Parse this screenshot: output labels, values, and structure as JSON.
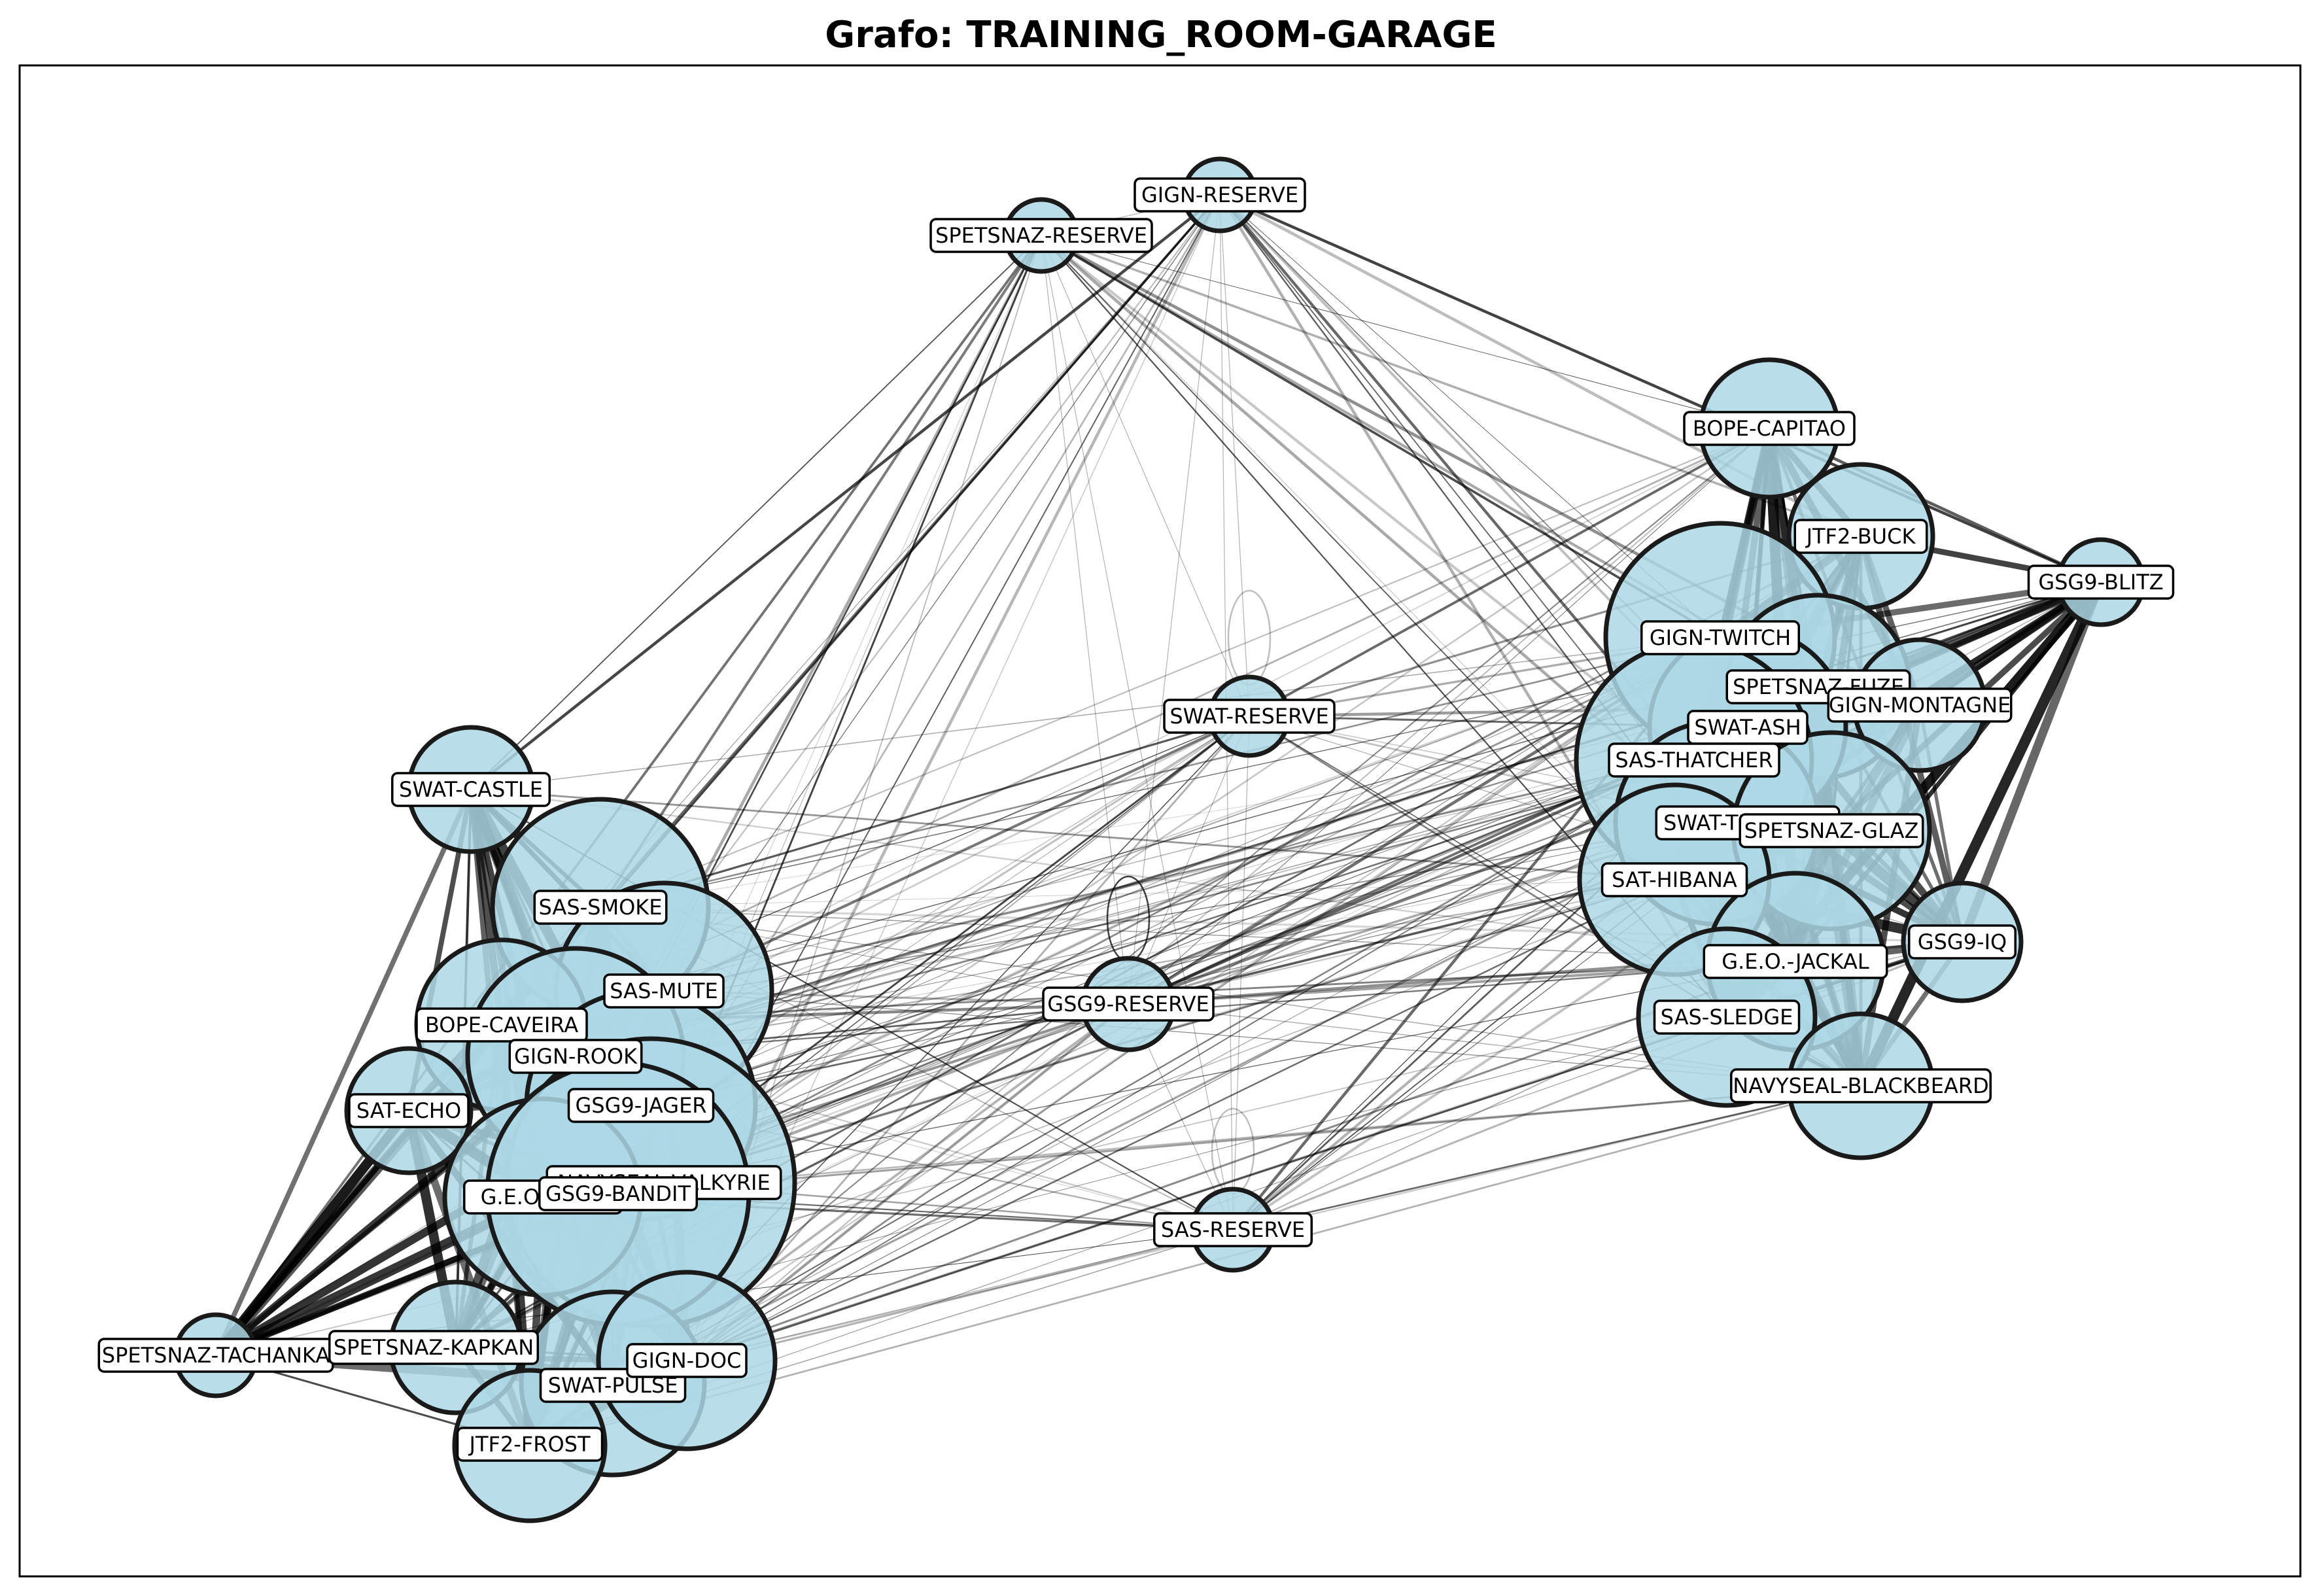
{
  "title": "Grafo: TRAINING_ROOM-GARAGE",
  "colors": {
    "node_fill": "#add8e6",
    "node_edge": "#1a1a1a",
    "edge": "#000000",
    "label_bg": "#ffffff"
  },
  "nodes": [
    {
      "id": "SPETSNAZ-RESERVE",
      "label": "SPETSNAZ-RESERVE"
    },
    {
      "id": "GIGN-RESERVE",
      "label": "GIGN-RESERVE"
    },
    {
      "id": "BOPE-CAPITAO",
      "label": "BOPE-CAPITAO"
    },
    {
      "id": "JTF2-BUCK",
      "label": "JTF2-BUCK"
    },
    {
      "id": "GSG9-BLITZ",
      "label": "GSG9-BLITZ"
    },
    {
      "id": "GIGN-TWITCH",
      "label": "GIGN-TWITCH"
    },
    {
      "id": "SPETSNAZ-FUZE",
      "label": "SPETSNAZ-FUZE"
    },
    {
      "id": "GIGN-MONTAGNE",
      "label": "GIGN-MONTAGNE"
    },
    {
      "id": "SWAT-ASH",
      "label": "SWAT-ASH"
    },
    {
      "id": "SAS-THATCHER",
      "label": "SAS-THATCHER"
    },
    {
      "id": "SWAT-THERMITE",
      "label": "SWAT-THERMITE"
    },
    {
      "id": "SPETSNAZ-GLAZ",
      "label": "SPETSNAZ-GLAZ"
    },
    {
      "id": "SAT-HIBANA",
      "label": "SAT-HIBANA"
    },
    {
      "id": "GSG9-IQ",
      "label": "GSG9-IQ"
    },
    {
      "id": "G.E.O.-JACKAL",
      "label": "G.E.O.-JACKAL"
    },
    {
      "id": "SAS-SLEDGE",
      "label": "SAS-SLEDGE"
    },
    {
      "id": "NAVYSEAL-BLACKBEARD",
      "label": "NAVYSEAL-BLACKBEARD"
    },
    {
      "id": "SWAT-RESERVE",
      "label": "SWAT-RESERVE"
    },
    {
      "id": "GSG9-RESERVE",
      "label": "GSG9-RESERVE"
    },
    {
      "id": "SAS-RESERVE",
      "label": "SAS-RESERVE"
    },
    {
      "id": "SWAT-CASTLE",
      "label": "SWAT-CASTLE"
    },
    {
      "id": "SAS-SMOKE",
      "label": "SAS-SMOKE"
    },
    {
      "id": "SAS-MUTE",
      "label": "SAS-MUTE"
    },
    {
      "id": "BOPE-CAVEIRA",
      "label": "BOPE-CAVEIRA"
    },
    {
      "id": "GIGN-ROOK",
      "label": "GIGN-ROOK"
    },
    {
      "id": "SAT-ECHO",
      "label": "SAT-ECHO"
    },
    {
      "id": "GSG9-JAGER",
      "label": "GSG9-JAGER"
    },
    {
      "id": "NAVYSEAL-VALKYRIE",
      "label": "NAVYSEAL-VALKYRIE"
    },
    {
      "id": "G.E.O.-MIRA",
      "label": "G.E.O.-MIRA"
    },
    {
      "id": "GSG9-BANDIT",
      "label": "GSG9-BANDIT"
    },
    {
      "id": "SPETSNAZ-TACHANKA",
      "label": "SPETSNAZ-TACHANKA"
    },
    {
      "id": "SPETSNAZ-KAPKAN",
      "label": "SPETSNAZ-KAPKAN"
    },
    {
      "id": "SWAT-PULSE",
      "label": "SWAT-PULSE"
    },
    {
      "id": "GIGN-DOC",
      "label": "GIGN-DOC"
    },
    {
      "id": "JTF2-FROST",
      "label": "JTF2-FROST"
    }
  ],
  "self_loops": [
    "SWAT-RESERVE",
    "GSG9-RESERVE",
    "SAS-RESERVE"
  ]
}
